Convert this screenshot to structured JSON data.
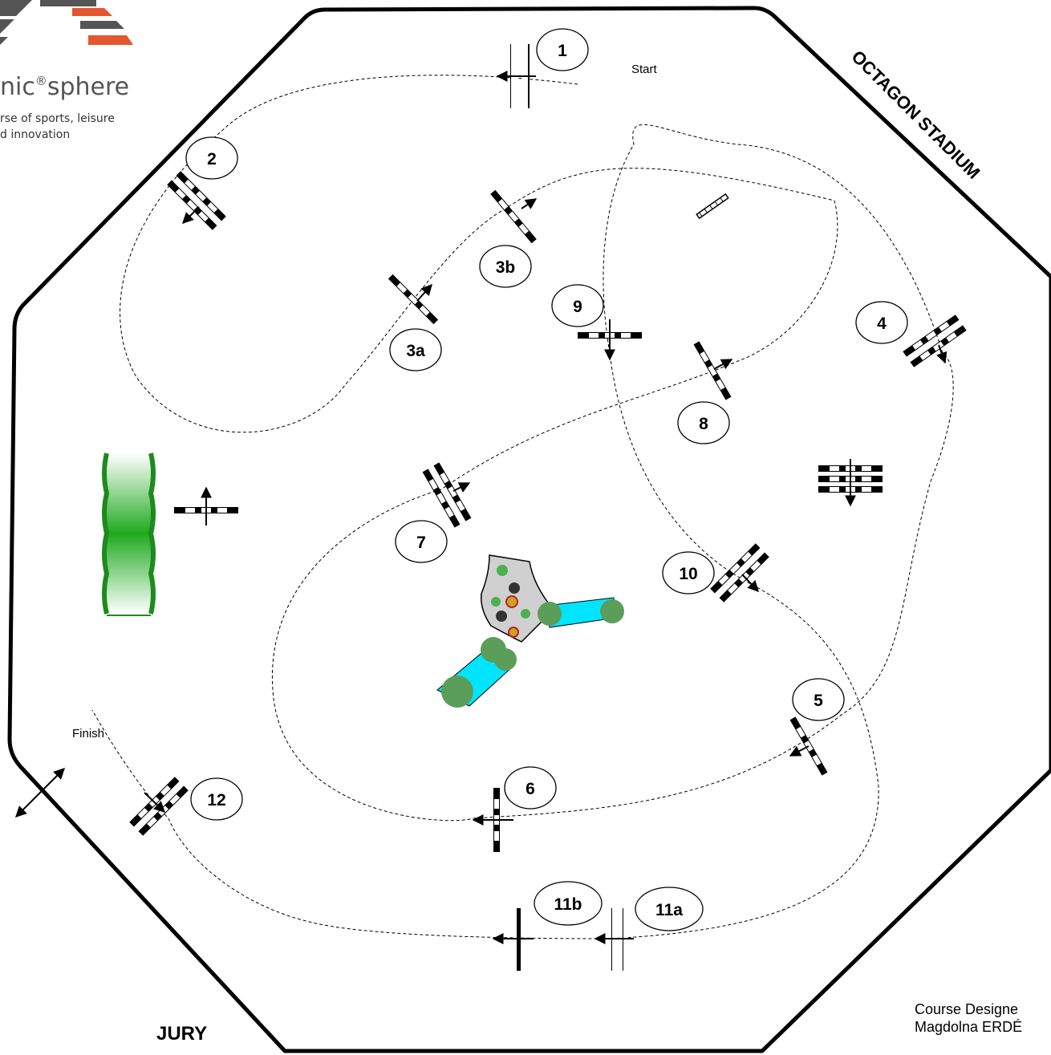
{
  "logo": {
    "name": "nic",
    "name_sup": "®",
    "name_suffix": "sphere",
    "tagline_1": "rse of sports, leisure",
    "tagline_2": "d innovation"
  },
  "arena": {
    "name": "OCTAGON STADIUM"
  },
  "labels": {
    "start": "Start",
    "finish": "Finish",
    "jury": "JURY"
  },
  "obstacles": [
    "1",
    "2",
    "3a",
    "3b",
    "4",
    "5",
    "6",
    "7",
    "8",
    "9",
    "10",
    "11a",
    "11b",
    "12"
  ],
  "credits": {
    "line1": "Course Designe",
    "line2": "Magdolna ERDÉ"
  }
}
